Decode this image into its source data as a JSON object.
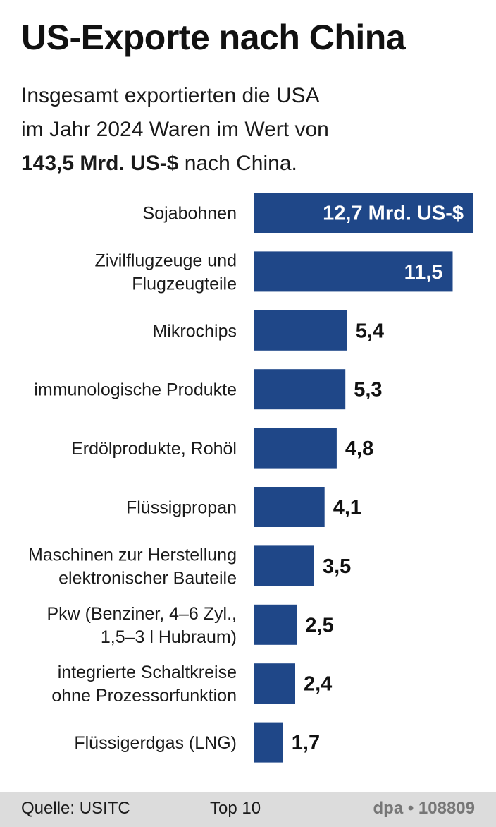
{
  "title": "US-Exporte nach China",
  "subtitle": {
    "line1": "Insgesamt exportierten die USA",
    "line2": "im Jahr 2024 Waren im Wert von",
    "line3_bold": "143,5 Mrd. US-$",
    "line3_rest": " nach China."
  },
  "colors": {
    "bar": "#1f4788",
    "footer_bg": "#dcdcdc"
  },
  "chart_data": {
    "type": "bar",
    "orientation": "horizontal",
    "unit": "Mrd. US-$",
    "categories": [
      [
        "Sojabohnen"
      ],
      [
        "Zivilflugzeuge und",
        "Flugzeugteile"
      ],
      [
        "Mikrochips"
      ],
      [
        "immunologische Produkte"
      ],
      [
        "Erdölprodukte, Rohöl"
      ],
      [
        "Flüssigpropan"
      ],
      [
        "Maschinen zur  Herstellung",
        "elektronischer  Bauteile"
      ],
      [
        "Pkw (Benziner, 4–6 Zyl.,",
        "1,5–3 l Hubraum)"
      ],
      [
        "integrierte Schaltkreise",
        "ohne Prozessorfunktion"
      ],
      [
        "Flüssigerdgas (LNG)"
      ]
    ],
    "values": [
      12.7,
      11.5,
      5.4,
      5.3,
      4.8,
      4.1,
      3.5,
      2.5,
      2.4,
      1.7
    ],
    "value_labels": [
      "12,7 Mrd. US-$",
      "11,5",
      "5,4",
      "5,3",
      "4,8",
      "4,1",
      "3,5",
      "2,5",
      "2,4",
      "1,7"
    ],
    "labels_inside": [
      true,
      true,
      false,
      false,
      false,
      false,
      false,
      false,
      false,
      false
    ],
    "xlim": [
      0,
      12.7
    ]
  },
  "footer": {
    "source": "Quelle: USITC",
    "note": "Top 10",
    "agency": "dpa • 108809"
  }
}
